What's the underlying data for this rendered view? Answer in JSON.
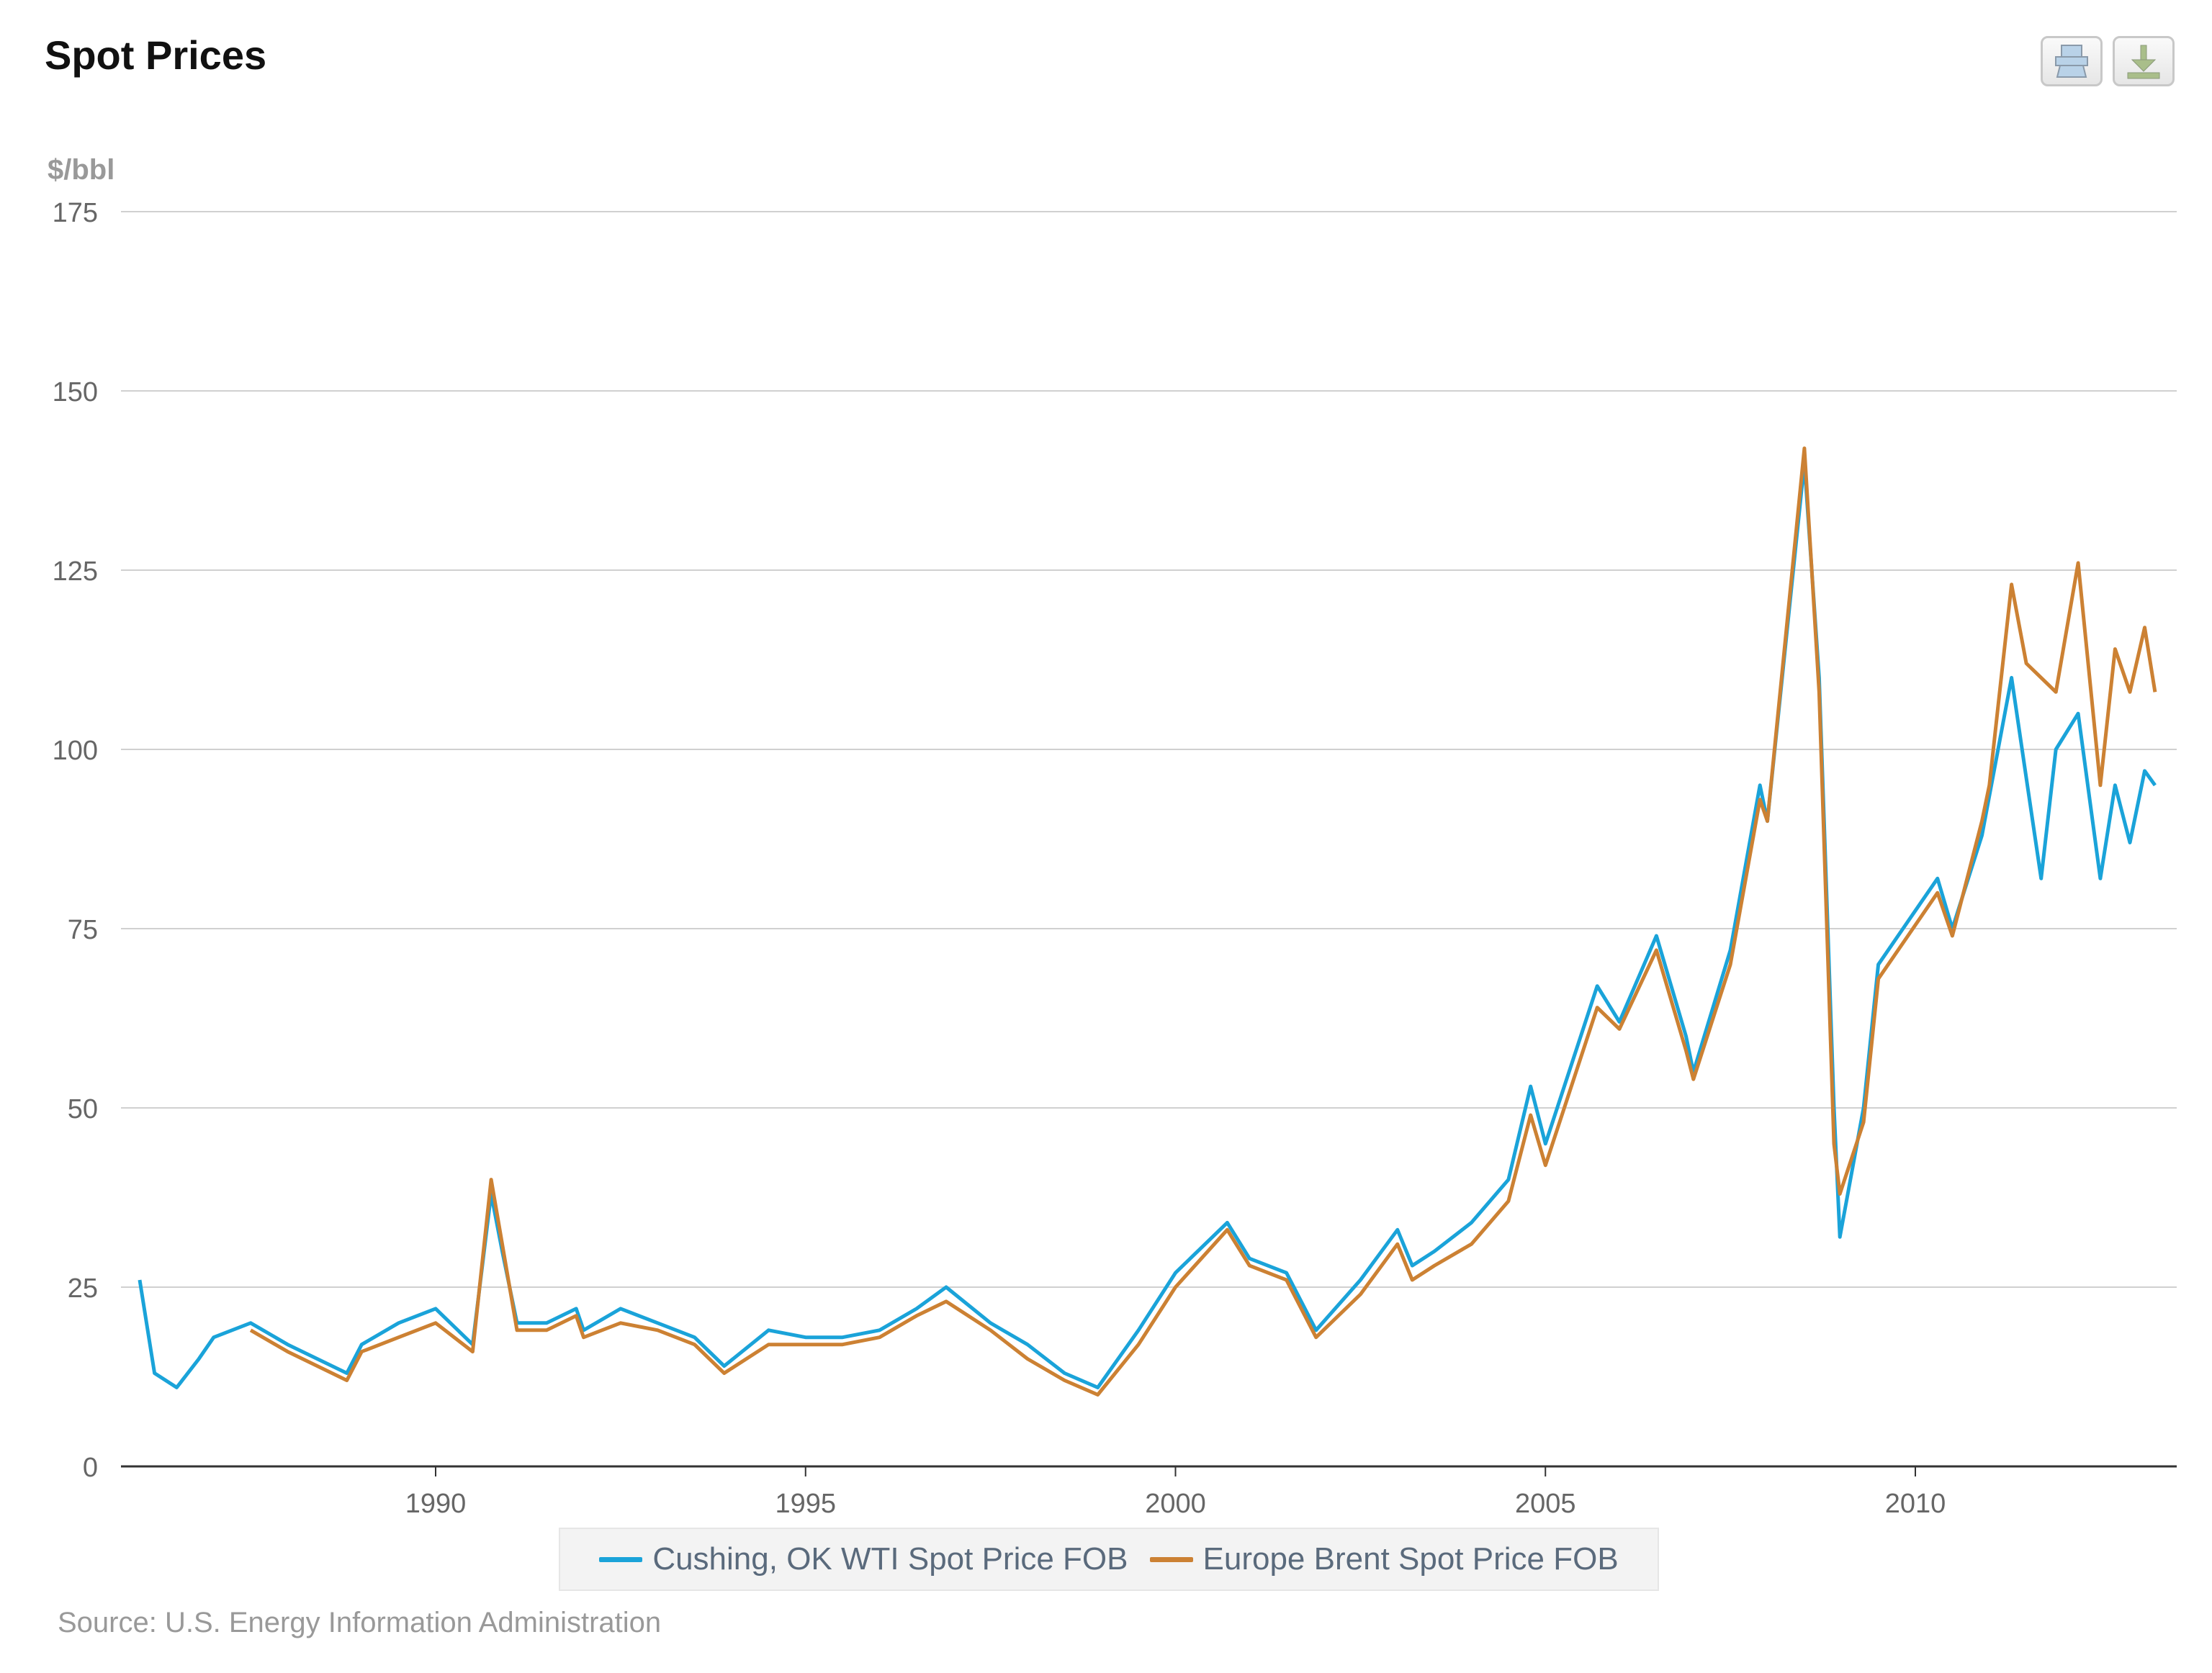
{
  "header": {
    "title": "Spot Prices",
    "print_icon": "printer-icon",
    "download_icon": "download-icon"
  },
  "source": "Source: U.S. Energy Information Administration",
  "chart_data": {
    "type": "line",
    "title": "Spot Prices",
    "ylabel": "$/bbl",
    "xlabel": "",
    "ylim": [
      0,
      175
    ],
    "yticks": [
      "0",
      "25",
      "50",
      "75",
      "100",
      "125",
      "150",
      "175"
    ],
    "xticks": [
      "1990",
      "1995",
      "2000",
      "2005",
      "2010"
    ],
    "xlim": [
      1986.0,
      2013.5
    ],
    "grid": true,
    "legend": "bottom",
    "series": [
      {
        "name": "Cushing, OK WTI Spot Price FOB",
        "color": "#1aa3d9",
        "x": [
          1986.0,
          1986.2,
          1986.5,
          1986.8,
          1987.0,
          1987.5,
          1988.0,
          1988.8,
          1989.0,
          1989.5,
          1990.0,
          1990.5,
          1990.75,
          1990.9,
          1991.1,
          1991.5,
          1991.9,
          1992.0,
          1992.5,
          1993.0,
          1993.5,
          1993.9,
          1994.5,
          1995.0,
          1995.5,
          1996.0,
          1996.5,
          1996.9,
          1997.5,
          1998.0,
          1998.5,
          1998.95,
          1999.5,
          2000.0,
          2000.7,
          2001.0,
          2001.5,
          2001.9,
          2002.5,
          2003.0,
          2003.2,
          2003.5,
          2004.0,
          2004.5,
          2004.8,
          2005.0,
          2005.7,
          2006.0,
          2006.5,
          2006.9,
          2007.0,
          2007.5,
          2007.9,
          2008.0,
          2008.5,
          2008.7,
          2008.9,
          2008.98,
          2009.3,
          2009.5,
          2009.9,
          2010.3,
          2010.5,
          2010.9,
          2011.3,
          2011.5,
          2011.7,
          2011.9,
          2012.2,
          2012.5,
          2012.7,
          2012.9,
          2013.1,
          2013.24
        ],
        "y": [
          26,
          13,
          11,
          15,
          18,
          20,
          17,
          13,
          17,
          20,
          22,
          17,
          38,
          30,
          20,
          20,
          22,
          19,
          22,
          20,
          18,
          14,
          19,
          18,
          18,
          19,
          22,
          25,
          20,
          17,
          13,
          11,
          19,
          27,
          34,
          29,
          27,
          19,
          26,
          33,
          28,
          30,
          34,
          40,
          53,
          45,
          67,
          62,
          74,
          60,
          55,
          72,
          95,
          90,
          140,
          110,
          50,
          32,
          50,
          70,
          76,
          82,
          75,
          88,
          110,
          96,
          82,
          100,
          105,
          82,
          95,
          87,
          97,
          95
        ]
      },
      {
        "name": "Europe Brent Spot Price FOB",
        "color": "#cc8133",
        "x": [
          1987.5,
          1988.0,
          1988.8,
          1989.0,
          1989.5,
          1990.0,
          1990.5,
          1990.75,
          1990.9,
          1991.1,
          1991.5,
          1991.9,
          1992.0,
          1992.5,
          1993.0,
          1993.5,
          1993.9,
          1994.5,
          1995.0,
          1995.5,
          1996.0,
          1996.5,
          1996.9,
          1997.5,
          1998.0,
          1998.5,
          1998.95,
          1999.5,
          2000.0,
          2000.7,
          2001.0,
          2001.5,
          2001.9,
          2002.5,
          2003.0,
          2003.2,
          2003.5,
          2004.0,
          2004.5,
          2004.8,
          2005.0,
          2005.7,
          2006.0,
          2006.5,
          2006.9,
          2007.0,
          2007.5,
          2007.9,
          2008.0,
          2008.5,
          2008.7,
          2008.9,
          2008.98,
          2009.3,
          2009.5,
          2009.9,
          2010.3,
          2010.5,
          2010.9,
          2011.0,
          2011.3,
          2011.5,
          2011.7,
          2011.9,
          2012.2,
          2012.5,
          2012.7,
          2012.9,
          2013.1,
          2013.24
        ],
        "y": [
          19,
          16,
          12,
          16,
          18,
          20,
          16,
          40,
          31,
          19,
          19,
          21,
          18,
          20,
          19,
          17,
          13,
          17,
          17,
          17,
          18,
          21,
          23,
          19,
          15,
          12,
          10,
          17,
          25,
          33,
          28,
          26,
          18,
          24,
          31,
          26,
          28,
          31,
          37,
          49,
          42,
          64,
          61,
          72,
          58,
          54,
          70,
          93,
          90,
          142,
          108,
          45,
          38,
          48,
          68,
          74,
          80,
          74,
          90,
          95,
          123,
          112,
          110,
          108,
          126,
          95,
          114,
          108,
          117,
          108
        ]
      }
    ]
  }
}
